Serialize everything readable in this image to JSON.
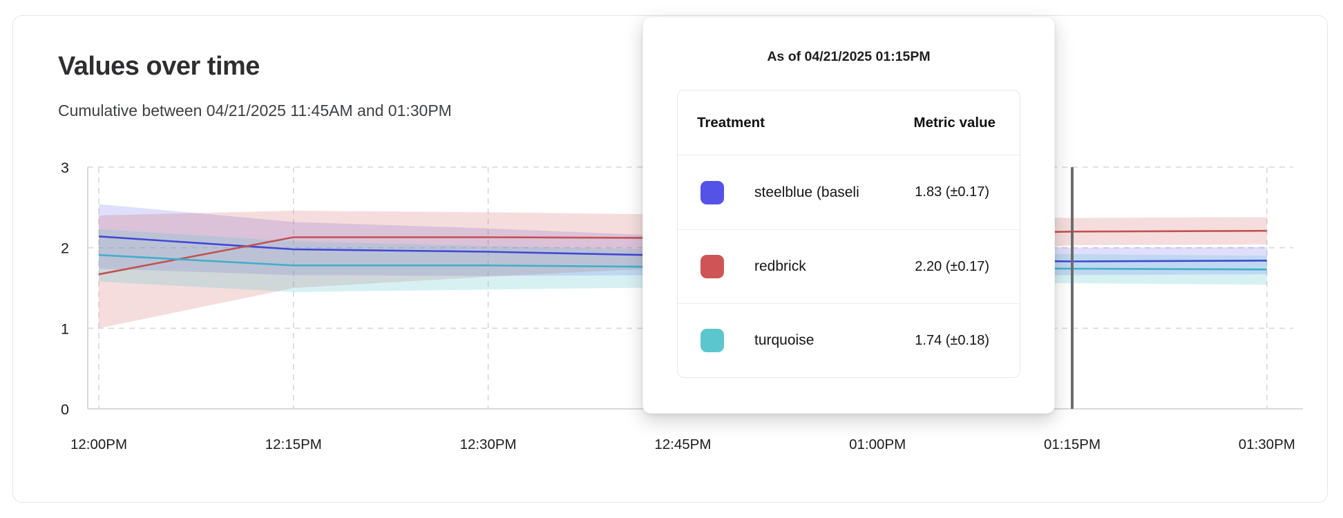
{
  "card": {
    "title": "Values over time",
    "subtitle": "Cumulative between 04/21/2025 11:45AM and 01:30PM"
  },
  "tooltip": {
    "title": "As of 04/21/2025 01:15PM",
    "columns": {
      "treatment": "Treatment",
      "metric": "Metric value"
    },
    "rows": [
      {
        "swatch": "#5552e8",
        "label": "steelblue  (baseli",
        "value": "1.83 (±0.17)"
      },
      {
        "swatch": "#ce5455",
        "label": "redbrick",
        "value": "2.20 (±0.17)"
      },
      {
        "swatch": "#5bc6ce",
        "label": "turquoise",
        "value": "1.74 (±0.18)"
      }
    ]
  },
  "chart_data": {
    "type": "line",
    "title": "Values over time",
    "subtitle": "Cumulative between 04/21/2025 11:45AM and 01:30PM",
    "x": [
      "12:00PM",
      "12:15PM",
      "12:30PM",
      "12:45PM",
      "01:00PM",
      "01:15PM",
      "01:30PM"
    ],
    "ylim": [
      0,
      3
    ],
    "yticks": [
      0,
      1,
      2,
      3
    ],
    "grid": true,
    "grid_style": "dashed",
    "legend_position": "none",
    "hover_marker_x": "01:15PM",
    "hover_marker_color": "#6d6d6d",
    "series": [
      {
        "name": "steelblue (baseline)",
        "color": "#4347d2",
        "band_color": "#5552e8",
        "band_opacity": 0.19,
        "values": [
          2.14,
          1.98,
          1.95,
          1.9,
          1.86,
          1.83,
          1.84
        ],
        "upper": [
          2.54,
          2.32,
          2.24,
          2.14,
          2.06,
          2.0,
          2.01
        ],
        "lower": [
          1.74,
          1.66,
          1.65,
          1.66,
          1.66,
          1.66,
          1.67
        ]
      },
      {
        "name": "redbrick",
        "color": "#c35150",
        "band_color": "#ce5455",
        "band_opacity": 0.2,
        "values": [
          1.67,
          2.13,
          2.13,
          2.12,
          2.16,
          2.2,
          2.21
        ],
        "upper": [
          2.4,
          2.46,
          2.44,
          2.41,
          2.39,
          2.37,
          2.38
        ],
        "lower": [
          1.0,
          1.5,
          1.64,
          1.76,
          1.9,
          2.03,
          2.04
        ]
      },
      {
        "name": "turquoise",
        "color": "#42aecb",
        "band_color": "#56c4ce",
        "band_opacity": 0.24,
        "values": [
          1.91,
          1.78,
          1.78,
          1.76,
          1.75,
          1.74,
          1.73
        ],
        "upper": [
          2.23,
          2.08,
          2.02,
          1.97,
          1.94,
          1.92,
          1.9
        ],
        "lower": [
          1.58,
          1.45,
          1.48,
          1.51,
          1.53,
          1.56,
          1.54
        ]
      }
    ]
  }
}
